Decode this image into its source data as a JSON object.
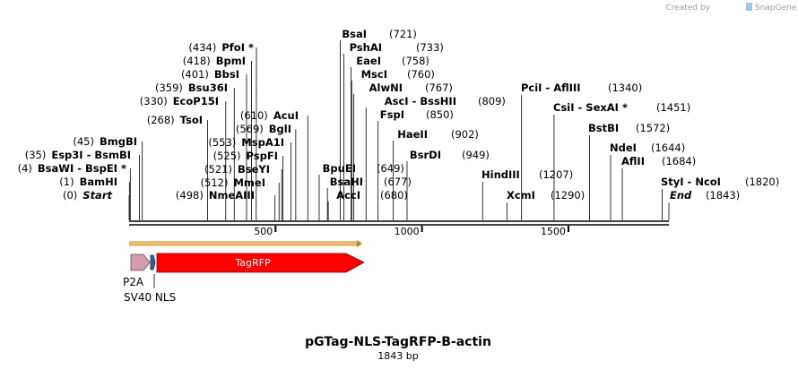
{
  "watermark": {
    "created_by": "Created by",
    "brand": "SnapGene"
  },
  "plasmid": {
    "name": "pGTag-NLS-TagRFP-B-actin",
    "length_label": "1843 bp",
    "length": 1843
  },
  "ruler": {
    "ticks": [
      {
        "pos": 500,
        "label": "500"
      },
      {
        "pos": 1000,
        "label": "1000"
      },
      {
        "pos": 1500,
        "label": "1500"
      }
    ]
  },
  "sites_left": [
    {
      "pos": "(434)",
      "name": "PfoI *",
      "bp": 434
    },
    {
      "pos": "(418)",
      "name": "BpmI",
      "bp": 418
    },
    {
      "pos": "(401)",
      "name": "BbsI",
      "bp": 401
    },
    {
      "pos": "(359)",
      "name": "Bsu36I",
      "bp": 359
    },
    {
      "pos": "(330)",
      "name": "EcoP15I",
      "bp": 330
    },
    {
      "pos": "(268)",
      "name": "TsoI",
      "bp": 268
    },
    {
      "pos": "(45)",
      "name": "BmgBI",
      "bp": 45
    },
    {
      "pos": "(35)",
      "name": "Esp3I  - BsmBI",
      "bp": 35
    },
    {
      "pos": "(4)",
      "name": "BsaWI  - BspEI *",
      "bp": 4
    },
    {
      "pos": "(1)",
      "name": "BamHI",
      "bp": 1
    },
    {
      "pos": "(0)",
      "name": "Start",
      "bp": 0,
      "italic": true
    },
    {
      "pos": "(610)",
      "name": "AcuI",
      "bp": 610
    },
    {
      "pos": "(569)",
      "name": "BglI",
      "bp": 569
    },
    {
      "pos": "(553)",
      "name": "MspA1I",
      "bp": 553
    },
    {
      "pos": "(525)",
      "name": "PspFI",
      "bp": 525
    },
    {
      "pos": "(521)",
      "name": "BseYI",
      "bp": 521
    },
    {
      "pos": "(512)",
      "name": "MmeI",
      "bp": 512
    },
    {
      "pos": "(498)",
      "name": "NmeAIII",
      "bp": 498
    }
  ],
  "sites_mid": [
    {
      "pos": "(721)",
      "name": "BsaI",
      "bp": 721
    },
    {
      "pos": "(733)",
      "name": "PshAI",
      "bp": 733
    },
    {
      "pos": "(758)",
      "name": "EaeI",
      "bp": 758
    },
    {
      "pos": "(760)",
      "name": "MscI",
      "bp": 760
    },
    {
      "pos": "(767)",
      "name": "AlwNI",
      "bp": 767
    },
    {
      "pos": "(809)",
      "name": "AscI  - BssHII",
      "bp": 809
    },
    {
      "pos": "(850)",
      "name": "FspI",
      "bp": 850
    },
    {
      "pos": "(902)",
      "name": "HaeII",
      "bp": 902
    },
    {
      "pos": "(949)",
      "name": "BsrDI",
      "bp": 949
    },
    {
      "pos": "(649)",
      "name": "BpuEI",
      "bp": 649
    },
    {
      "pos": "(677)",
      "name": "BsaHI",
      "bp": 677
    },
    {
      "pos": "(680)",
      "name": "AccI",
      "bp": 680
    }
  ],
  "sites_right": [
    {
      "pos": "(1340)",
      "name": "PciI  - AflIII",
      "bp": 1340
    },
    {
      "pos": "(1451)",
      "name": "CsiI  - SexAI *",
      "bp": 1451
    },
    {
      "pos": "(1572)",
      "name": "BstBI",
      "bp": 1572
    },
    {
      "pos": "(1644)",
      "name": "NdeI",
      "bp": 1644
    },
    {
      "pos": "(1684)",
      "name": "AflII",
      "bp": 1684
    },
    {
      "pos": "(1207)",
      "name": "HindIII",
      "bp": 1207
    },
    {
      "pos": "(1290)",
      "name": "XcmI",
      "bp": 1290
    },
    {
      "pos": "(1820)",
      "name": "StyI  - NcoI",
      "bp": 1820
    },
    {
      "pos": "(1843)",
      "name": "End",
      "bp": 1843,
      "italic": true
    }
  ],
  "features": [
    {
      "name": "P2A",
      "color": "#d59aab"
    },
    {
      "name": "SV40 NLS",
      "color": "#3d5a99"
    },
    {
      "name": "TagRFP",
      "color": "#ff0000"
    }
  ],
  "colors": {
    "orf_fill": "#f5c27a",
    "orf_border": "#c0821e"
  }
}
